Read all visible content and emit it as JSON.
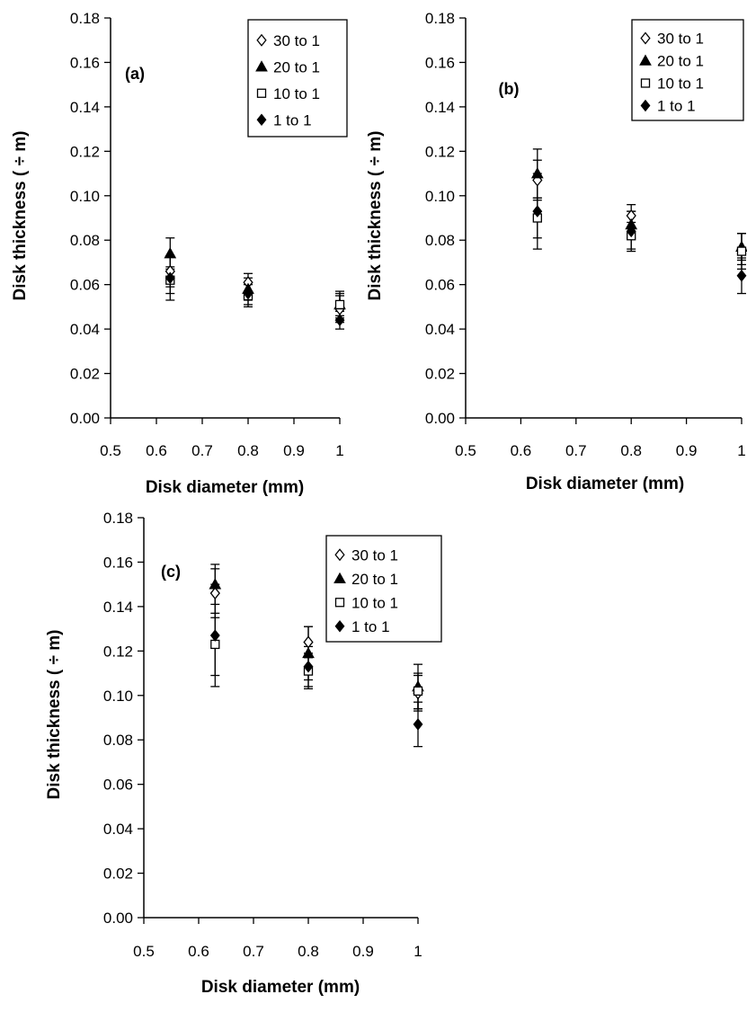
{
  "chart_data": [
    {
      "type": "scatter",
      "panel_label": "(a)",
      "xlabel": "Disk diameter (mm)",
      "ylabel": "Disk thickness ( ÷ m)",
      "xlim": [
        0.5,
        1
      ],
      "ylim": [
        0,
        0.18
      ],
      "x_ticks": [
        "0.5",
        "0.6",
        "0.7",
        "0.8",
        "0.9",
        "1"
      ],
      "y_ticks": [
        "0.00",
        "0.02",
        "0.04",
        "0.06",
        "0.08",
        "0.10",
        "0.12",
        "0.14",
        "0.16",
        "0.18"
      ],
      "x_tick_values": [
        0.5,
        0.6,
        0.7,
        0.8,
        0.9,
        1.0
      ],
      "y_tick_values": [
        0,
        0.02,
        0.04,
        0.06,
        0.08,
        0.1,
        0.12,
        0.14,
        0.16,
        0.18
      ],
      "legend_position": "top-right",
      "x": [
        0.63,
        0.8,
        1.0
      ],
      "series": [
        {
          "name": "30 to 1",
          "marker": "open-diamond",
          "values": [
            0.066,
            0.061,
            0.049
          ],
          "errors": [
            0.007,
            0.004,
            0.006
          ]
        },
        {
          "name": "20 to 1",
          "marker": "filled-triangle",
          "values": [
            0.074,
            0.058,
            0.051
          ],
          "errors": [
            0.007,
            0.005,
            0.006
          ]
        },
        {
          "name": "10 to 1",
          "marker": "open-square",
          "values": [
            0.062,
            0.055,
            0.051
          ],
          "errors": [
            0.006,
            0.005,
            0.005
          ]
        },
        {
          "name": "1 to 1",
          "marker": "filled-diamond",
          "values": [
            0.063,
            0.056,
            0.044
          ],
          "errors": [
            0.01,
            0.005,
            0.004
          ]
        }
      ]
    },
    {
      "type": "scatter",
      "panel_label": "(b)",
      "xlabel": "Disk diameter (mm)",
      "ylabel": "Disk thickness ( ÷ m)",
      "xlim": [
        0.5,
        1
      ],
      "ylim": [
        0,
        0.18
      ],
      "x_ticks": [
        "0.5",
        "0.6",
        "0.7",
        "0.8",
        "0.9",
        "1"
      ],
      "y_ticks": [
        "0.00",
        "0.02",
        "0.04",
        "0.06",
        "0.08",
        "0.10",
        "0.12",
        "0.14",
        "0.16",
        "0.18"
      ],
      "x_tick_values": [
        0.5,
        0.6,
        0.7,
        0.8,
        0.9,
        1.0
      ],
      "y_tick_values": [
        0,
        0.02,
        0.04,
        0.06,
        0.08,
        0.1,
        0.12,
        0.14,
        0.16,
        0.18
      ],
      "legend_position": "top-right",
      "x": [
        0.63,
        0.8,
        1.0
      ],
      "series": [
        {
          "name": "30 to 1",
          "marker": "open-diamond",
          "values": [
            0.107,
            0.091,
            0.076
          ],
          "errors": [
            0.009,
            0.005,
            0.007
          ]
        },
        {
          "name": "20 to 1",
          "marker": "filled-triangle",
          "values": [
            0.11,
            0.087,
            0.077
          ],
          "errors": [
            0.011,
            0.006,
            0.006
          ]
        },
        {
          "name": "10 to 1",
          "marker": "open-square",
          "values": [
            0.09,
            0.082,
            0.075
          ],
          "errors": [
            0.009,
            0.006,
            0.008
          ]
        },
        {
          "name": "1 to 1",
          "marker": "filled-diamond",
          "values": [
            0.093,
            0.084,
            0.064
          ],
          "errors": [
            0.017,
            0.009,
            0.008
          ]
        }
      ]
    },
    {
      "type": "scatter",
      "panel_label": "(c)",
      "xlabel": "Disk diameter (mm)",
      "ylabel": "Disk thickness ( ÷ m)",
      "xlim": [
        0.5,
        1
      ],
      "ylim": [
        0,
        0.18
      ],
      "x_ticks": [
        "0.5",
        "0.6",
        "0.7",
        "0.8",
        "0.9",
        "1"
      ],
      "y_ticks": [
        "0.00",
        "0.02",
        "0.04",
        "0.06",
        "0.08",
        "0.10",
        "0.12",
        "0.14",
        "0.16",
        "0.18"
      ],
      "x_tick_values": [
        0.5,
        0.6,
        0.7,
        0.8,
        0.9,
        1.0
      ],
      "y_tick_values": [
        0,
        0.02,
        0.04,
        0.06,
        0.08,
        0.1,
        0.12,
        0.14,
        0.16,
        0.18
      ],
      "legend_position": "top-right",
      "x": [
        0.63,
        0.8,
        1.0
      ],
      "series": [
        {
          "name": "30 to 1",
          "marker": "open-diamond",
          "values": [
            0.146,
            0.124,
            0.101
          ],
          "errors": [
            0.011,
            0.007,
            0.008
          ]
        },
        {
          "name": "20 to 1",
          "marker": "filled-triangle",
          "values": [
            0.15,
            0.119,
            0.104
          ],
          "errors": [
            0.009,
            0.012,
            0.01
          ]
        },
        {
          "name": "10 to 1",
          "marker": "open-square",
          "values": [
            0.123,
            0.111,
            0.102
          ],
          "errors": [
            0.014,
            0.008,
            0.008
          ]
        },
        {
          "name": "1 to 1",
          "marker": "filled-diamond",
          "values": [
            0.127,
            0.113,
            0.087
          ],
          "errors": [
            0.023,
            0.009,
            0.01
          ]
        }
      ]
    }
  ]
}
